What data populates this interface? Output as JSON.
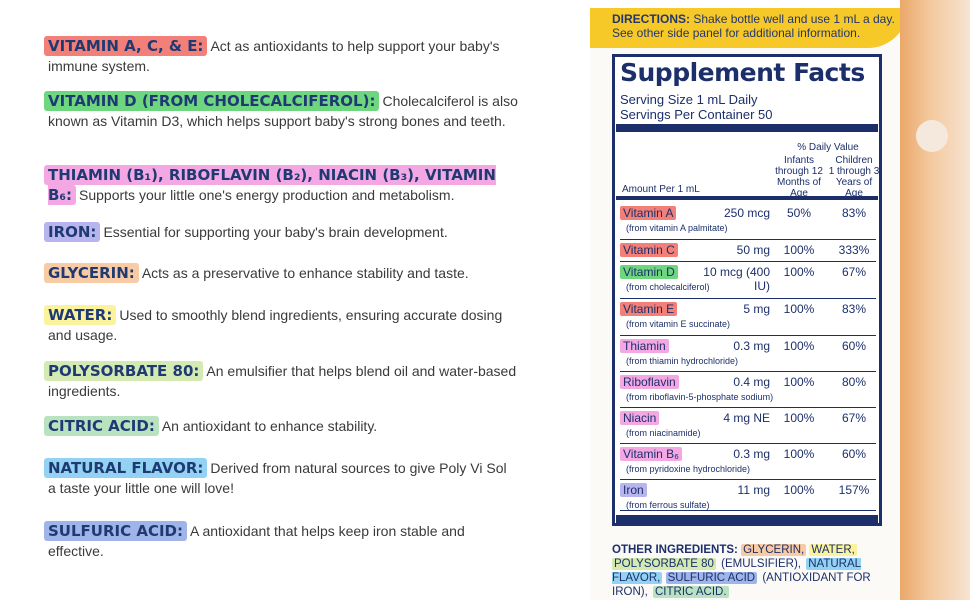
{
  "legend": [
    {
      "label": "VITAMIN A, C, & E:",
      "color": "#f27f78",
      "text": "Act as antioxidants to help support your baby's immune system."
    },
    {
      "label": "VITAMIN D (FROM CHOLECALCIFEROL):",
      "color": "#6ed67f",
      "text": "Cholecalciferol is also known as Vitamin D3, which helps support baby's strong bones and teeth."
    },
    {
      "label": "THIAMIN (B₁), RIBOFLAVIN (B₂), NIACIN (B₃), VITAMIN B₆:",
      "color": "#f4a8e3",
      "text": "Supports your little one's energy production and metabolism."
    },
    {
      "label": "IRON:",
      "color": "#b8b5ee",
      "text": "Essential for supporting your baby's brain development."
    },
    {
      "label": "GLYCERIN:",
      "color": "#f8cba4",
      "text": "Acts as a preservative to enhance stability and taste."
    },
    {
      "label": "WATER:",
      "color": "#fbf39c",
      "text": "Used to smoothly blend ingredients, ensuring accurate dosing and usage."
    },
    {
      "label": "POLYSORBATE 80:",
      "color": "#d3eab3",
      "text": "An emulsifier that helps blend oil and water-based ingredients."
    },
    {
      "label": "CITRIC ACID:",
      "color": "#b9e3c0",
      "text": "An antioxidant to enhance stability."
    },
    {
      "label": "NATURAL FLAVOR:",
      "color": "#93d2f3",
      "text": "Derived from natural sources to give Poly Vi Sol a taste your little one will love!"
    },
    {
      "label": "SULFURIC ACID:",
      "color": "#9fb5ea",
      "text": "A antioxidant that helps keep iron stable and effective."
    }
  ],
  "directions": {
    "label": "DIRECTIONS:",
    "text": "Shake bottle well and use 1 mL a day. See other side panel for additional information."
  },
  "facts": {
    "title": "Supplement Facts",
    "serving": "Serving Size 1 mL Daily",
    "servings": "Servings Per Container 50",
    "dv": "% Daily Value",
    "col1": [
      "Infants",
      "through 12",
      "Months of Age"
    ],
    "col2": [
      "Children",
      "1 through 3",
      "Years of Age"
    ],
    "amount": "Amount Per 1 mL",
    "rows": [
      {
        "name": "Vitamin A",
        "src": "(from vitamin A palmitate)",
        "amt": "250 mcg",
        "p1": "50%",
        "p2": "83%",
        "color": "#f27f78"
      },
      {
        "name": "Vitamin C",
        "src": "",
        "amt": "50 mg",
        "p1": "100%",
        "p2": "333%",
        "color": "#f27f78"
      },
      {
        "name": "Vitamin D",
        "src": "(from cholecalciferol)",
        "amt": "10 mcg (400 IU)",
        "p1": "100%",
        "p2": "67%",
        "color": "#6ed67f"
      },
      {
        "name": "Vitamin E",
        "src": "(from vitamin E succinate)",
        "amt": "5 mg",
        "p1": "100%",
        "p2": "83%",
        "color": "#f27f78"
      },
      {
        "name": "Thiamin",
        "src": "(from thiamin hydrochloride)",
        "amt": "0.3 mg",
        "p1": "100%",
        "p2": "60%",
        "color": "#f4a8e3"
      },
      {
        "name": "Riboflavin",
        "src": "(from riboflavin-5-phosphate sodium)",
        "amt": "0.4 mg",
        "p1": "100%",
        "p2": "80%",
        "color": "#f4a8e3"
      },
      {
        "name": "Niacin",
        "src": "(from niacinamide)",
        "amt": "4 mg NE",
        "p1": "100%",
        "p2": "67%",
        "color": "#f4a8e3"
      },
      {
        "name": "Vitamin B₆",
        "src": "(from pyridoxine hydrochloride)",
        "amt": "0.3 mg",
        "p1": "100%",
        "p2": "60%",
        "color": "#f4a8e3"
      },
      {
        "name": "Iron",
        "src": "(from ferrous sulfate)",
        "amt": "11 mg",
        "p1": "100%",
        "p2": "157%",
        "color": "#b8b5ee"
      }
    ]
  },
  "other": {
    "label": "OTHER INGREDIENTS:",
    "parts": [
      {
        "t": "GLYCERIN,",
        "c": "#f8cba4"
      },
      {
        "t": "WATER,",
        "c": "#fbf39c"
      },
      {
        "t": "POLYSORBATE 80",
        "c": "#d3eab3"
      },
      {
        "t": "(EMULSIFIER),",
        "c": ""
      },
      {
        "t": "NATURAL FLAVOR,",
        "c": "#93d2f3"
      },
      {
        "t": "SULFURIC ACID",
        "c": "#9fb5ea"
      },
      {
        "t": "(ANTIOXIDANT FOR IRON),",
        "c": ""
      },
      {
        "t": "CITRIC ACID.",
        "c": "#b9e3c0"
      }
    ]
  }
}
